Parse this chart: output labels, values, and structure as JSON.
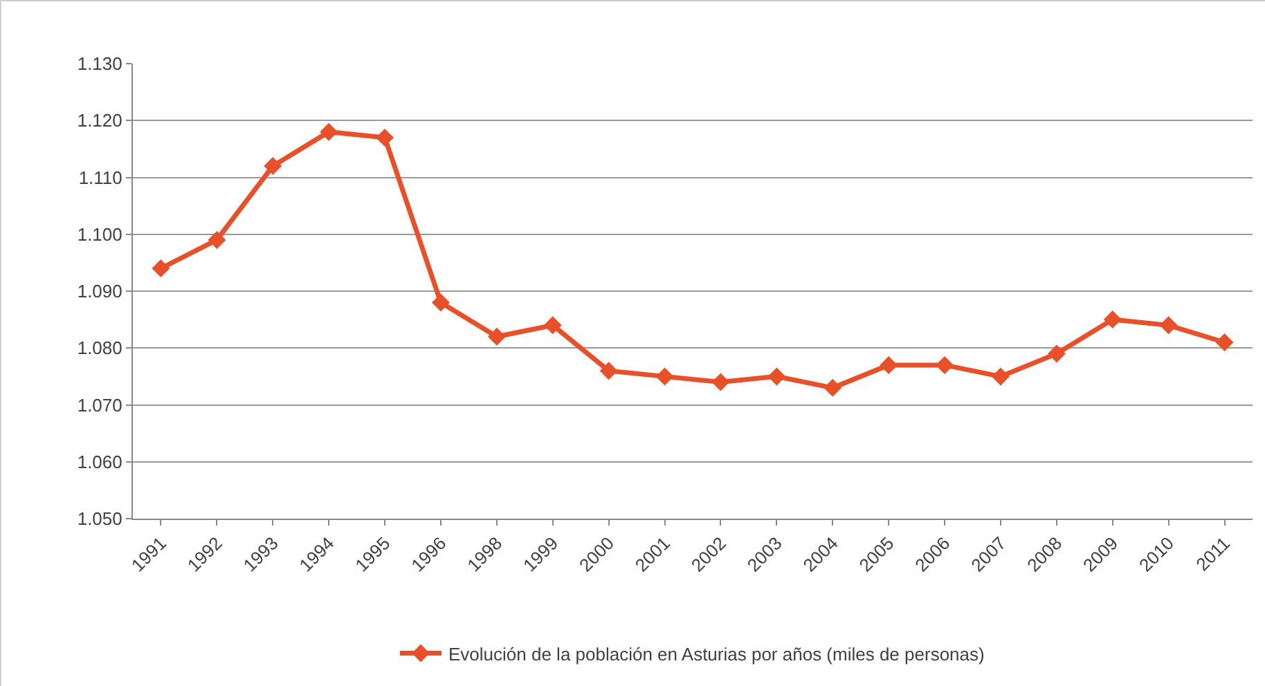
{
  "chart_data": {
    "type": "line",
    "categories": [
      "1991",
      "1992",
      "1993",
      "1994",
      "1995",
      "1996",
      "1998",
      "1999",
      "2000",
      "2001",
      "2002",
      "2003",
      "2004",
      "2005",
      "2006",
      "2007",
      "2008",
      "2009",
      "2010",
      "2011"
    ],
    "series": [
      {
        "name": "Evolución de la población en Asturias por años (miles de personas)",
        "color": "#e8502a",
        "values": [
          1094,
          1099,
          1112,
          1118,
          1117,
          1088,
          1082,
          1084,
          1076,
          1075,
          1074,
          1075,
          1073,
          1077,
          1077,
          1075,
          1079,
          1085,
          1084,
          1081
        ]
      }
    ],
    "ylim": [
      1050,
      1130
    ],
    "yticks": [
      {
        "value": 1050,
        "label": "1.050"
      },
      {
        "value": 1060,
        "label": "1.060"
      },
      {
        "value": 1070,
        "label": "1.070"
      },
      {
        "value": 1080,
        "label": "1.080"
      },
      {
        "value": 1090,
        "label": "1.090"
      },
      {
        "value": 1100,
        "label": "1.100"
      },
      {
        "value": 1110,
        "label": "1.110"
      },
      {
        "value": 1120,
        "label": "1.120"
      },
      {
        "value": 1130,
        "label": "1.130"
      }
    ],
    "grid": "y",
    "legend": "bottom",
    "marker": "diamond",
    "line_style": "solid"
  }
}
